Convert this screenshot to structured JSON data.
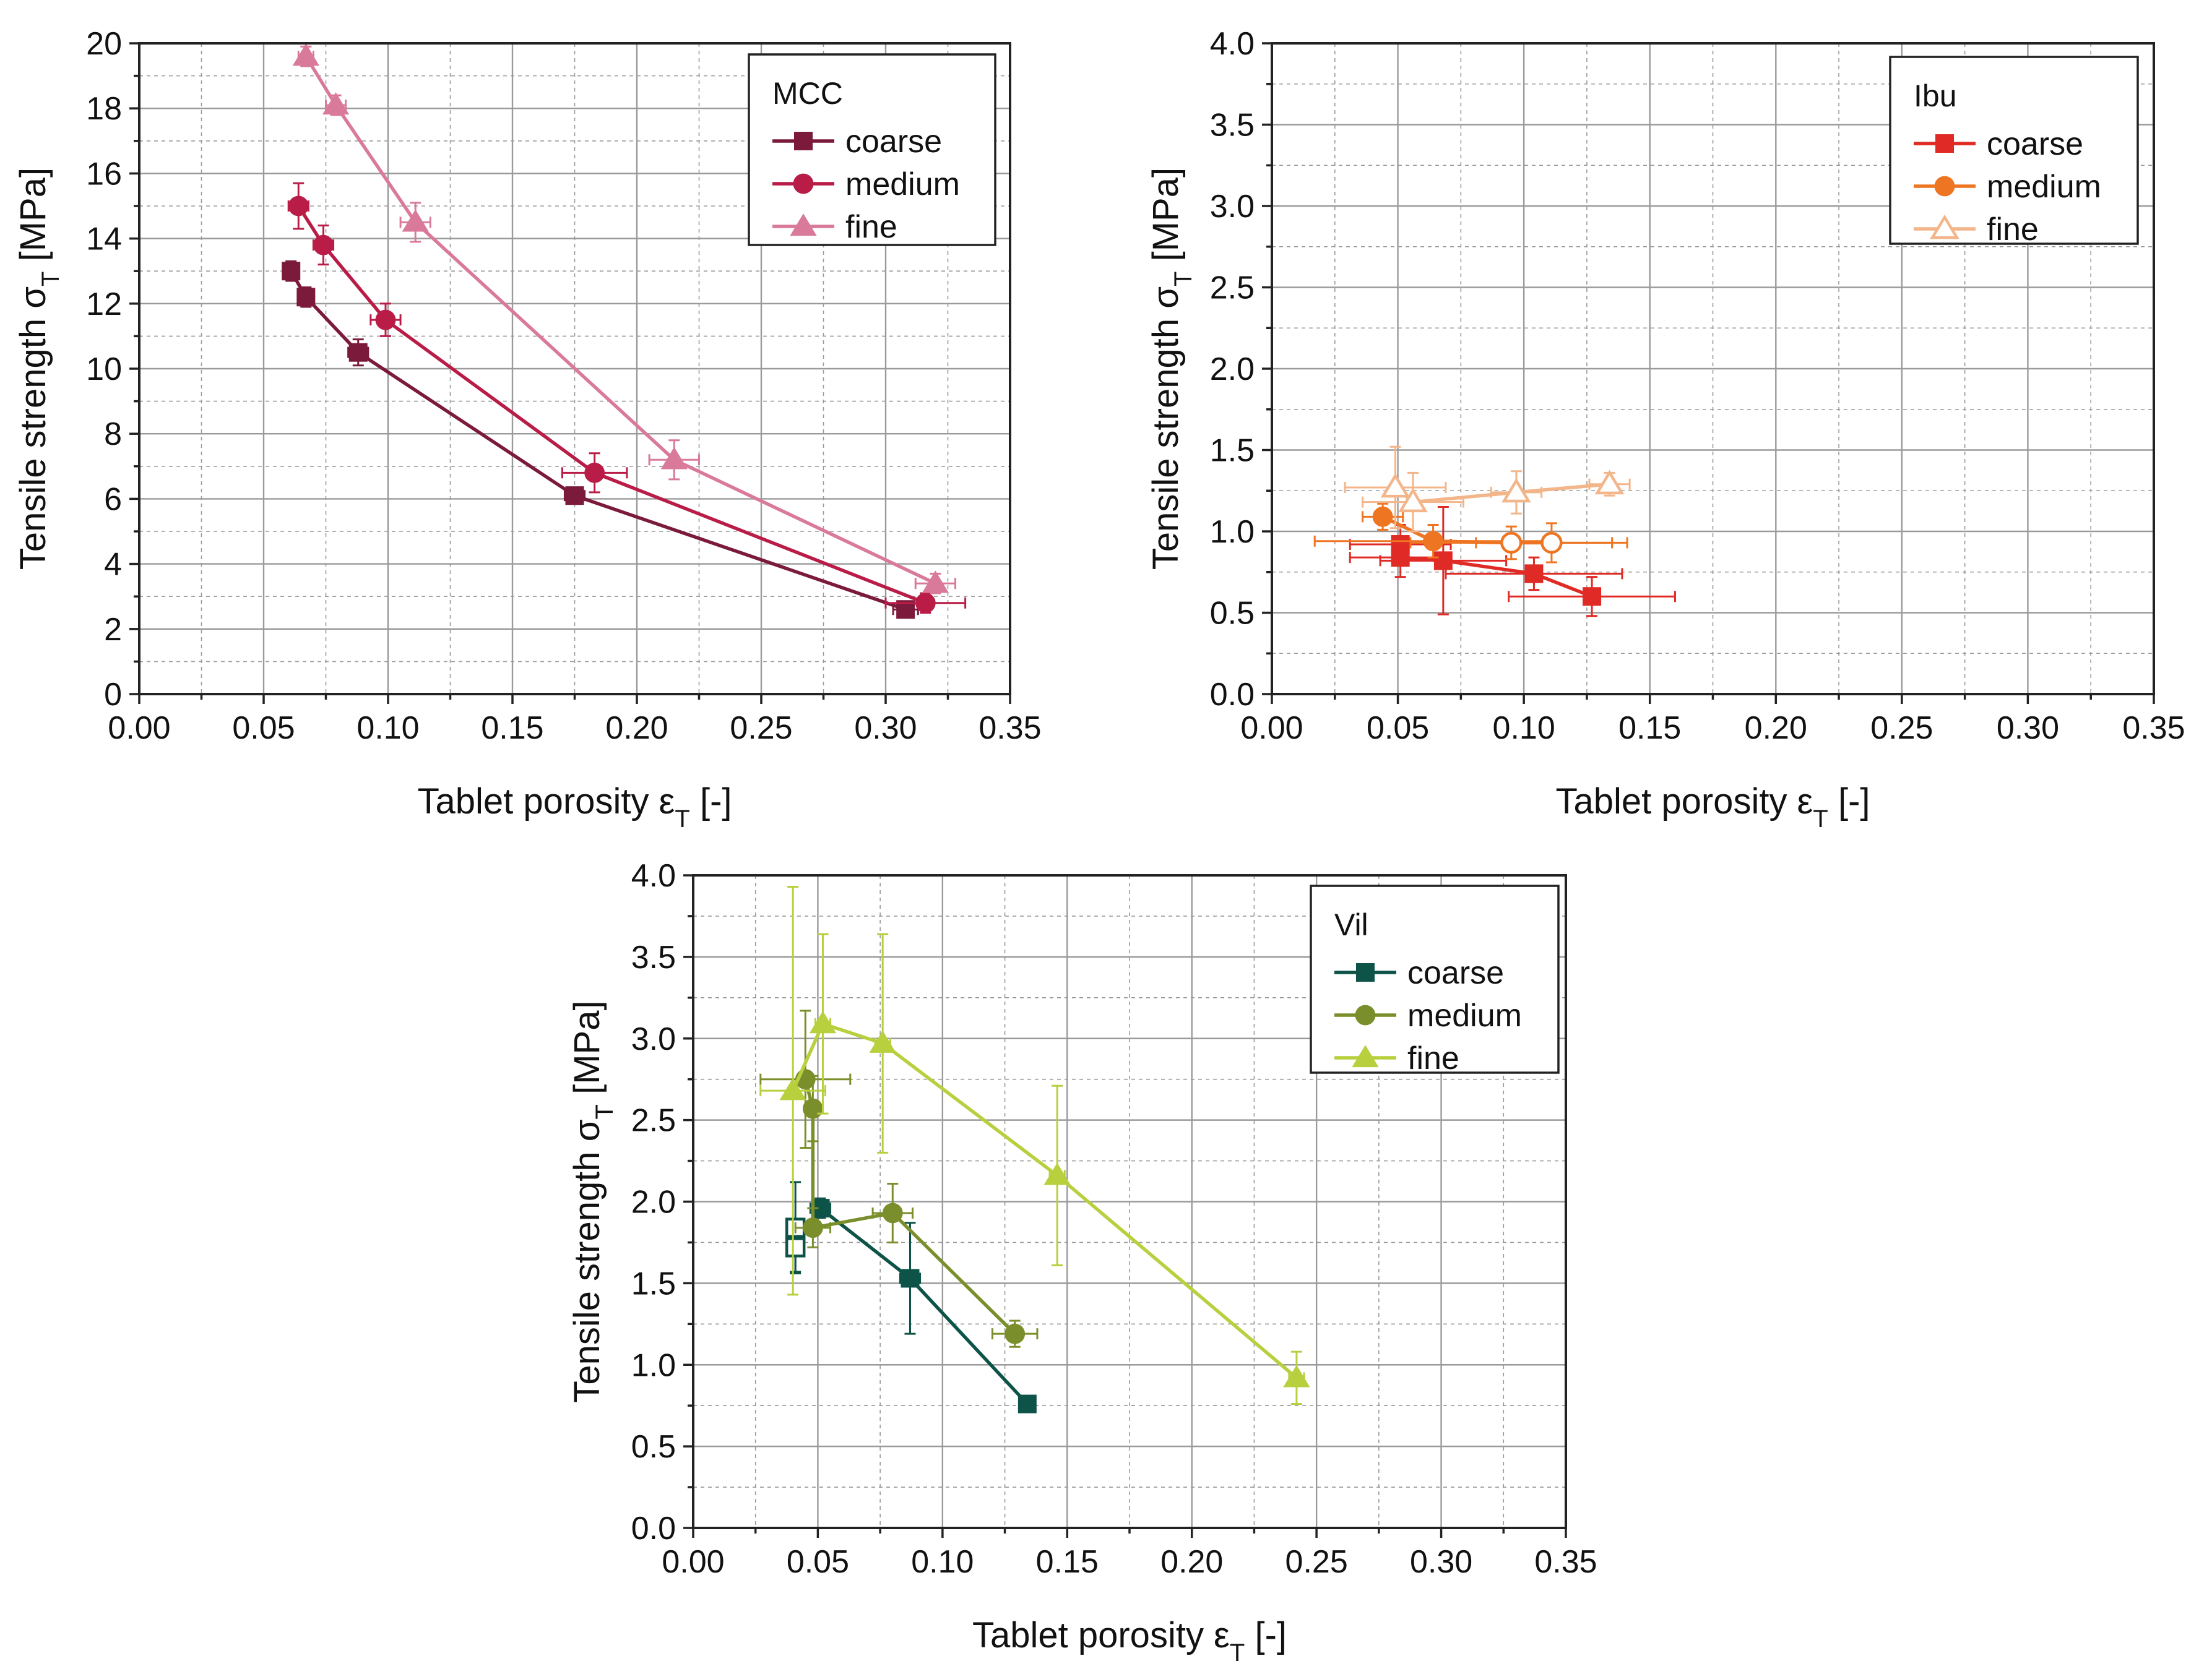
{
  "chart_data": [
    {
      "id": "mcc",
      "type": "line",
      "xlabel_main": "Tablet porosity ε",
      "xlabel_sub": "T",
      "xlabel_tail": " [-]",
      "ylabel_main": "Tensile strength σ",
      "ylabel_sub": "T",
      "ylabel_tail": " [MPa]",
      "xlim": [
        0,
        0.35
      ],
      "ylim": [
        0,
        20
      ],
      "xticks": [
        0.0,
        0.05,
        0.1,
        0.15,
        0.2,
        0.25,
        0.3,
        0.35
      ],
      "xtick_labels": [
        "0.00",
        "0.05",
        "0.10",
        "0.15",
        "0.20",
        "0.25",
        "0.30",
        "0.35"
      ],
      "yticks": [
        0,
        2,
        4,
        6,
        8,
        10,
        12,
        14,
        16,
        18,
        20
      ],
      "ytick_labels": [
        "0",
        "2",
        "4",
        "6",
        "8",
        "10",
        "12",
        "14",
        "16",
        "18",
        "20"
      ],
      "xminor": 0.025,
      "yminor": 1,
      "legend": {
        "title": "MCC",
        "position": "top-right"
      },
      "series": [
        {
          "name": "coarse",
          "color": "#7b1a3b",
          "marker": "square",
          "x": [
            0.061,
            0.067,
            0.088,
            0.175,
            0.308
          ],
          "y": [
            13.0,
            12.2,
            10.5,
            6.1,
            2.6
          ],
          "xerr": [
            0.003,
            0.003,
            0.004,
            0.004,
            0.005
          ],
          "yerr": [
            0.3,
            0.3,
            0.4,
            0.2,
            0.2
          ],
          "hollow": []
        },
        {
          "name": "medium",
          "color": "#b91d47",
          "marker": "circle",
          "x": [
            0.064,
            0.074,
            0.099,
            0.183,
            0.316
          ],
          "y": [
            15.0,
            13.8,
            11.5,
            6.8,
            2.8
          ],
          "xerr": [
            0.004,
            0.004,
            0.006,
            0.013,
            0.016
          ],
          "yerr": [
            0.7,
            0.6,
            0.5,
            0.6,
            0.3
          ],
          "hollow": []
        },
        {
          "name": "fine",
          "color": "#d97a9b",
          "marker": "triangle",
          "x": [
            0.067,
            0.079,
            0.111,
            0.215,
            0.32
          ],
          "y": [
            19.6,
            18.1,
            14.5,
            7.2,
            3.4
          ],
          "xerr": [
            0.003,
            0.004,
            0.006,
            0.01,
            0.008
          ],
          "yerr": [
            0.3,
            0.3,
            0.6,
            0.6,
            0.3
          ],
          "hollow": []
        }
      ]
    },
    {
      "id": "ibu",
      "type": "line",
      "xlabel_main": "Tablet porosity ε",
      "xlabel_sub": "T",
      "xlabel_tail": " [-]",
      "ylabel_main": "Tensile strength σ",
      "ylabel_sub": "T",
      "ylabel_tail": " [MPa]",
      "xlim": [
        0,
        0.35
      ],
      "ylim": [
        0,
        4
      ],
      "xticks": [
        0.0,
        0.05,
        0.1,
        0.15,
        0.2,
        0.25,
        0.3,
        0.35
      ],
      "xtick_labels": [
        "0.00",
        "0.05",
        "0.10",
        "0.15",
        "0.20",
        "0.25",
        "0.30",
        "0.35"
      ],
      "yticks": [
        0.0,
        0.5,
        1.0,
        1.5,
        2.0,
        2.5,
        3.0,
        3.5,
        4.0
      ],
      "ytick_labels": [
        "0.0",
        "0.5",
        "1.0",
        "1.5",
        "2.0",
        "2.5",
        "3.0",
        "3.5",
        "4.0"
      ],
      "xminor": 0.025,
      "yminor": 0.25,
      "legend": {
        "title": "Ibu",
        "position": "top-right"
      },
      "series": [
        {
          "name": "coarse",
          "color": "#e02a25",
          "marker": "square",
          "x": [
            0.051,
            0.051,
            0.068,
            0.104,
            0.127
          ],
          "y": [
            0.92,
            0.84,
            0.82,
            0.74,
            0.6
          ],
          "xerr": [
            0.02,
            0.02,
            0.025,
            0.035,
            0.033
          ],
          "yerr": [
            0.12,
            0.12,
            0.33,
            0.1,
            0.12
          ],
          "hollow": []
        },
        {
          "name": "medium",
          "color": "#ee7522",
          "marker": "circle",
          "x": [
            0.044,
            0.064,
            0.095,
            0.111
          ],
          "y": [
            1.09,
            0.94,
            0.93,
            0.93
          ],
          "xerr": [
            0.008,
            0.047,
            0.04,
            0.03
          ],
          "yerr": [
            0.08,
            0.1,
            0.1,
            0.12
          ],
          "hollow": [
            2,
            3
          ]
        },
        {
          "name": "fine",
          "color": "#f3b58a",
          "marker": "triangle",
          "x": [
            0.049,
            0.056,
            0.097,
            0.134
          ],
          "y": [
            1.27,
            1.18,
            1.24,
            1.29
          ],
          "xerr": [
            0.02,
            0.02,
            0.01,
            0.008
          ],
          "yerr": [
            0.25,
            0.18,
            0.13,
            0.07
          ],
          "hollow": [
            0,
            1,
            2,
            3
          ]
        }
      ]
    },
    {
      "id": "vil",
      "type": "line",
      "xlabel_main": "Tablet porosity ε",
      "xlabel_sub": "T",
      "xlabel_tail": " [-]",
      "ylabel_main": "Tensile strength σ",
      "ylabel_sub": "T",
      "ylabel_tail": " [MPa]",
      "xlim": [
        0,
        0.35
      ],
      "ylim": [
        0,
        4
      ],
      "xticks": [
        0.0,
        0.05,
        0.1,
        0.15,
        0.2,
        0.25,
        0.3,
        0.35
      ],
      "xtick_labels": [
        "0.00",
        "0.05",
        "0.10",
        "0.15",
        "0.20",
        "0.25",
        "0.30",
        "0.35"
      ],
      "yticks": [
        0.0,
        0.5,
        1.0,
        1.5,
        2.0,
        2.5,
        3.0,
        3.5,
        4.0
      ],
      "ytick_labels": [
        "0.0",
        "0.5",
        "1.0",
        "1.5",
        "2.0",
        "2.5",
        "3.0",
        "3.5",
        "4.0"
      ],
      "xminor": 0.025,
      "yminor": 0.25,
      "legend": {
        "title": "Vil",
        "position": "top-right"
      },
      "series": [
        {
          "name": "coarse",
          "color": "#0d5348",
          "marker": "square",
          "x": [
            0.041,
            0.041,
            0.051,
            0.087,
            0.134
          ],
          "y": [
            1.84,
            1.72,
            1.96,
            1.53,
            0.76
          ],
          "xerr": [
            0.003,
            0.003,
            0.004,
            0.004,
            0.003
          ],
          "yerr": [
            0.28,
            0.15,
            0.06,
            0.34,
            0.04
          ],
          "hollow": [
            0,
            1
          ]
        },
        {
          "name": "medium",
          "color": "#7a8f2b",
          "marker": "circle",
          "x": [
            0.045,
            0.048,
            0.048,
            0.08,
            0.129
          ],
          "y": [
            2.75,
            2.57,
            1.84,
            1.93,
            1.19
          ],
          "xerr": [
            0.018,
            0.003,
            0.007,
            0.008,
            0.009
          ],
          "yerr": [
            0.42,
            0.2,
            0.12,
            0.18,
            0.08
          ],
          "hollow": []
        },
        {
          "name": "fine",
          "color": "#b8cf3e",
          "marker": "triangle",
          "x": [
            0.04,
            0.052,
            0.076,
            0.146,
            0.242
          ],
          "y": [
            2.68,
            3.09,
            2.97,
            2.16,
            0.92
          ],
          "xerr": [
            0.013,
            0.003,
            0.003,
            0.003,
            0.003
          ],
          "yerr": [
            1.25,
            0.55,
            0.67,
            0.55,
            0.16
          ],
          "hollow": []
        }
      ]
    }
  ]
}
